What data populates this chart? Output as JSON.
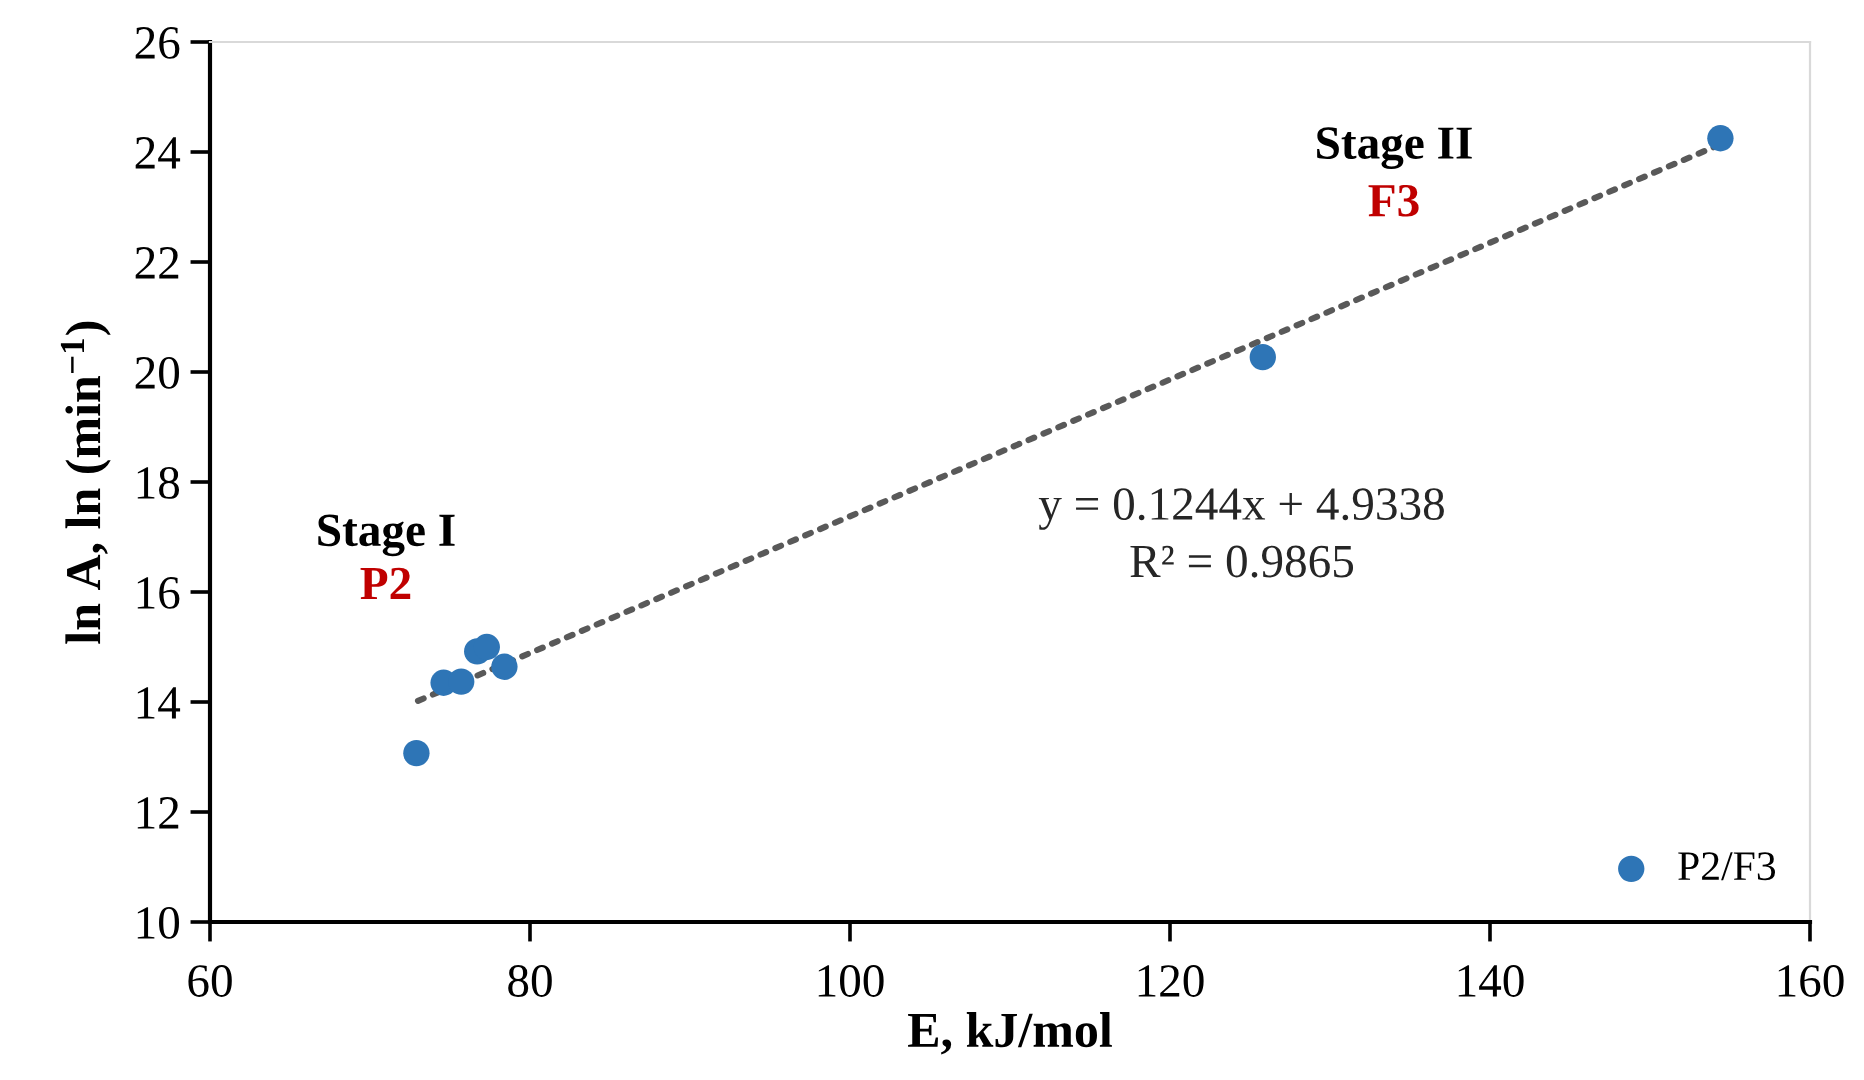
{
  "chart_data": {
    "type": "scatter",
    "xlabel": "E, kJ/mol",
    "ylabel": "ln A, ln (min$^{−1}$)",
    "xlim": [
      60,
      160
    ],
    "xticks": [
      60,
      80,
      100,
      120,
      140,
      160
    ],
    "ylim": [
      10,
      26
    ],
    "yticks": [
      10,
      12,
      14,
      16,
      18,
      20,
      22,
      24,
      26
    ],
    "grid": false,
    "legend": "bottom right",
    "series": [
      {
        "name": "P2/F3",
        "marker": "circle",
        "color": "#2e75b6",
        "x": [
          72.9,
          74.6,
          75.7,
          76.7,
          77.3,
          78.4,
          125.8,
          154.4
        ],
        "values": [
          13.07,
          14.35,
          14.37,
          14.92,
          15.0,
          14.64,
          20.27,
          24.25
        ]
      },
      {
        "type": "line",
        "marker": "none",
        "color": "#595959",
        "line_style": "dotted",
        "x": [
          73,
          154.4
        ],
        "values": [
          14.02,
          24.14
        ]
      }
    ],
    "annotations": [
      "Stage I",
      "P2",
      "Stage II",
      "F3",
      "y = 0.1244x + 4.9338",
      "R² = 0.9865"
    ]
  }
}
